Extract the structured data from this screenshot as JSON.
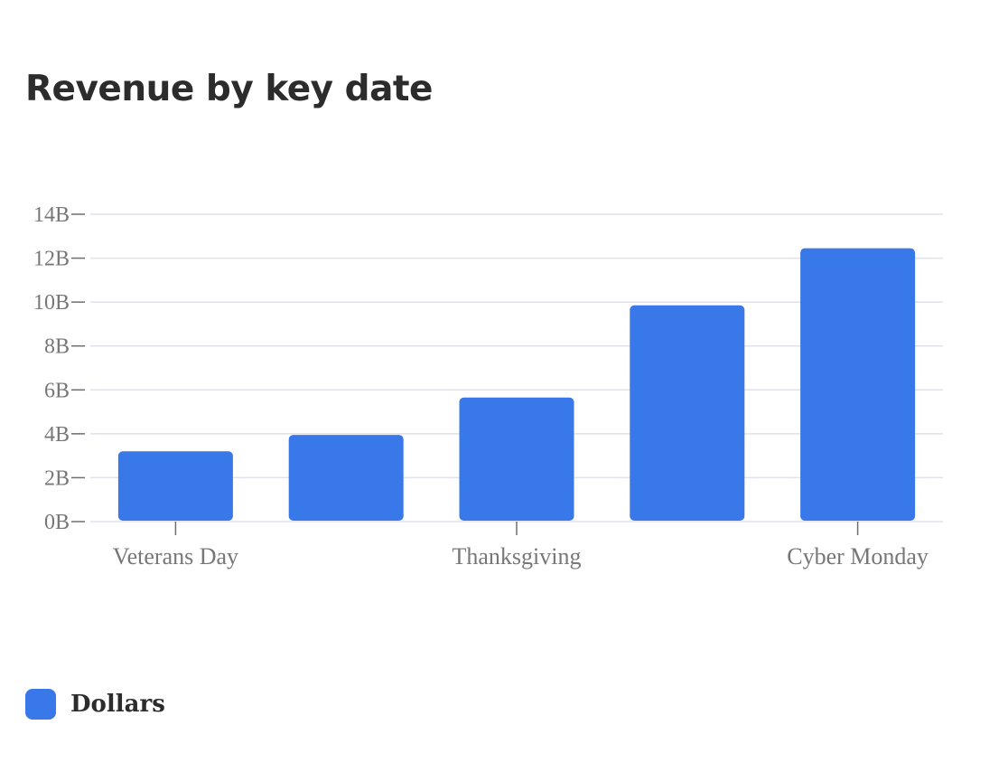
{
  "chart_data": {
    "type": "bar",
    "title": "Revenue by key date",
    "categories": [
      "Veterans Day",
      "",
      "Thanksgiving",
      "",
      "Cyber Monday"
    ],
    "x_tick_labels": [
      "Veterans Day",
      "Thanksgiving",
      "Cyber Monday"
    ],
    "series": [
      {
        "name": "Dollars",
        "color": "#3878E8",
        "values": [
          3200000000,
          3950000000,
          5650000000,
          9850000000,
          12450000000
        ]
      }
    ],
    "ylim": [
      0,
      14000000000
    ],
    "y_ticks": [
      "0B",
      "2B",
      "4B",
      "6B",
      "8B",
      "10B",
      "12B",
      "14B"
    ],
    "xlabel": "",
    "ylabel": "",
    "grid": true,
    "legend_position": "bottom-left"
  }
}
